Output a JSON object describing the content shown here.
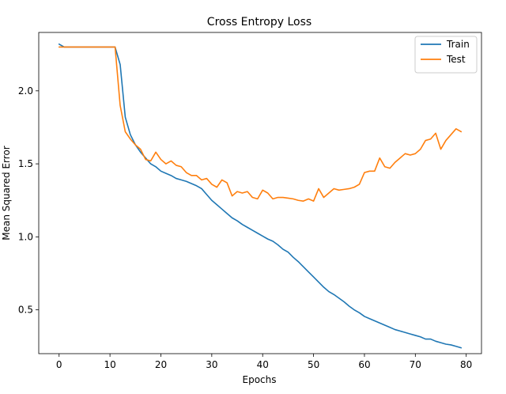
{
  "chart_data": {
    "type": "line",
    "title": "Cross Entropy Loss",
    "xlabel": "Epochs",
    "ylabel": "Mean Squared Error",
    "xlim": [
      -4,
      83
    ],
    "ylim": [
      0.2,
      2.4
    ],
    "xticks": [
      0,
      10,
      20,
      30,
      40,
      50,
      60,
      70,
      80
    ],
    "yticks": [
      0.5,
      1.0,
      1.5,
      2.0
    ],
    "ytick_labels": [
      "0.5",
      "1.0",
      "1.5",
      "2.0"
    ],
    "grid": false,
    "legend_position": "top-right",
    "x": [
      0,
      1,
      2,
      3,
      4,
      5,
      6,
      7,
      8,
      9,
      10,
      11,
      12,
      13,
      14,
      15,
      16,
      17,
      18,
      19,
      20,
      21,
      22,
      23,
      24,
      25,
      26,
      27,
      28,
      29,
      30,
      31,
      32,
      33,
      34,
      35,
      36,
      37,
      38,
      39,
      40,
      41,
      42,
      43,
      44,
      45,
      46,
      47,
      48,
      49,
      50,
      51,
      52,
      53,
      54,
      55,
      56,
      57,
      58,
      59,
      60,
      61,
      62,
      63,
      64,
      65,
      66,
      67,
      68,
      69,
      70,
      71,
      72,
      73,
      74,
      75,
      76,
      77,
      78,
      79
    ],
    "series": [
      {
        "name": "Train",
        "color": "#1f77b4",
        "values": [
          2.32,
          2.3,
          2.3,
          2.3,
          2.3,
          2.3,
          2.3,
          2.3,
          2.3,
          2.3,
          2.3,
          2.3,
          2.18,
          1.82,
          1.7,
          1.63,
          1.58,
          1.54,
          1.5,
          1.48,
          1.45,
          1.435,
          1.42,
          1.4,
          1.39,
          1.38,
          1.365,
          1.35,
          1.33,
          1.29,
          1.25,
          1.22,
          1.19,
          1.16,
          1.13,
          1.11,
          1.085,
          1.065,
          1.045,
          1.025,
          1.005,
          0.985,
          0.97,
          0.945,
          0.915,
          0.895,
          0.86,
          0.83,
          0.795,
          0.76,
          0.725,
          0.69,
          0.655,
          0.625,
          0.605,
          0.58,
          0.555,
          0.525,
          0.5,
          0.48,
          0.455,
          0.44,
          0.425,
          0.41,
          0.395,
          0.38,
          0.365,
          0.355,
          0.345,
          0.335,
          0.325,
          0.315,
          0.3,
          0.3,
          0.285,
          0.275,
          0.265,
          0.26,
          0.25,
          0.24
        ]
      },
      {
        "name": "Test",
        "color": "#ff7f0e",
        "values": [
          2.3,
          2.3,
          2.3,
          2.3,
          2.3,
          2.3,
          2.3,
          2.3,
          2.3,
          2.3,
          2.3,
          2.3,
          1.9,
          1.72,
          1.67,
          1.63,
          1.6,
          1.53,
          1.52,
          1.58,
          1.53,
          1.5,
          1.52,
          1.49,
          1.48,
          1.44,
          1.42,
          1.42,
          1.39,
          1.4,
          1.36,
          1.34,
          1.39,
          1.37,
          1.28,
          1.31,
          1.3,
          1.31,
          1.27,
          1.26,
          1.32,
          1.3,
          1.26,
          1.27,
          1.27,
          1.265,
          1.26,
          1.25,
          1.245,
          1.26,
          1.245,
          1.33,
          1.27,
          1.3,
          1.33,
          1.32,
          1.325,
          1.33,
          1.34,
          1.36,
          1.44,
          1.45,
          1.45,
          1.54,
          1.48,
          1.47,
          1.51,
          1.54,
          1.57,
          1.56,
          1.57,
          1.6,
          1.66,
          1.67,
          1.71,
          1.6,
          1.66,
          1.7,
          1.74,
          1.72
        ]
      }
    ]
  }
}
